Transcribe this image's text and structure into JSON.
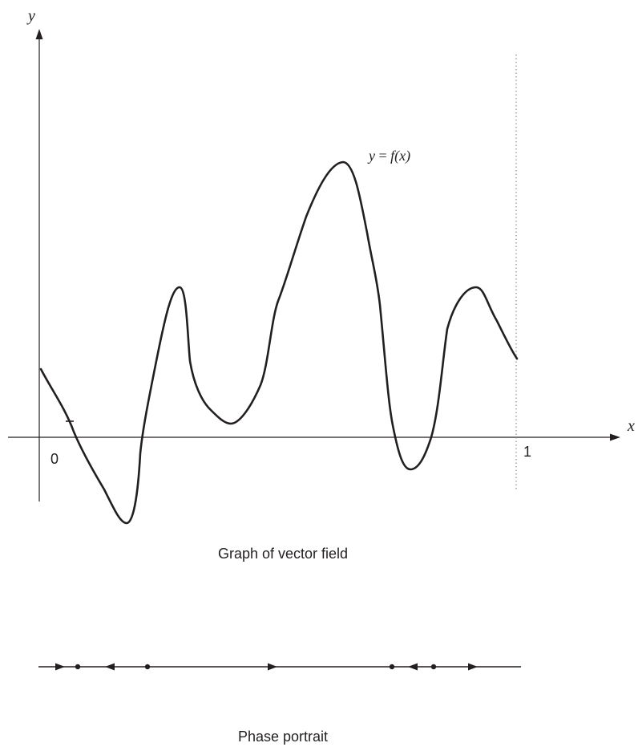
{
  "graph": {
    "y_axis_label": "y",
    "x_axis_label": "x",
    "origin_label": "0",
    "x_end_label": "1",
    "curve_label_lhs": "y",
    "curve_label_eq": " = ",
    "curve_label_f": "f",
    "curve_label_arg": "(x)",
    "caption": "Graph of vector field"
  },
  "phase_portrait": {
    "caption": "Phase portrait",
    "equilibria": [
      "stable",
      "unstable",
      "stable",
      "unstable"
    ],
    "flow_directions": [
      "right",
      "left",
      "right",
      "left",
      "right"
    ]
  }
}
